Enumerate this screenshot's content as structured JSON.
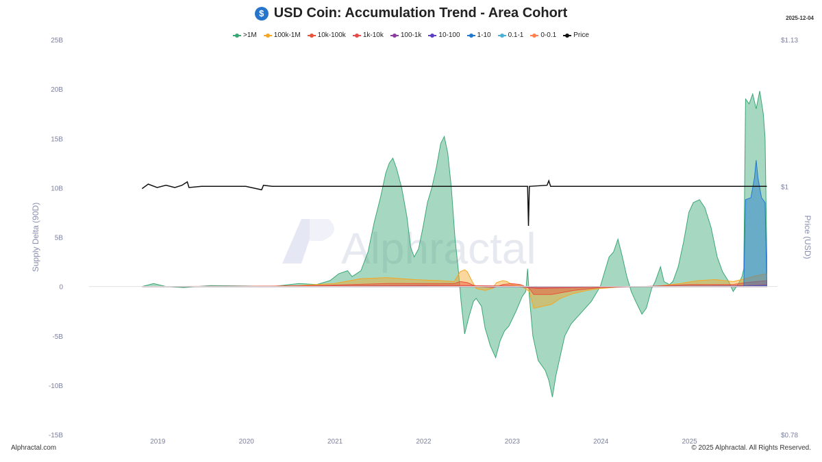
{
  "header": {
    "title": "USD Coin: Accumulation Trend - Area Cohort",
    "date": "2025-12-04",
    "coin_icon": "usdc-coin-icon",
    "coin_symbol": "$"
  },
  "footer": {
    "left": "Alphractal.com",
    "right": "© 2025 Alphractal. All Rights Reserved."
  },
  "watermark": "Alphractal",
  "chart_data": {
    "type": "area",
    "xlabel": "",
    "ylabel": "Supply Delta (90D)",
    "y2label": "Price (USD)",
    "x_ticks": [
      "2019",
      "2020",
      "2021",
      "2022",
      "2023",
      "2024",
      "2025"
    ],
    "y_ticks": [
      "25B",
      "20B",
      "15B",
      "10B",
      "5B",
      "0",
      "-5B",
      "-10B",
      "-15B"
    ],
    "y2_ticks": [
      "$1.13",
      "$1",
      "$0.78"
    ],
    "ylim": [
      -15,
      25
    ],
    "y2lim": [
      0.78,
      1.13
    ],
    "xlim": [
      2018.0,
      2026.0
    ],
    "grid": false,
    "legend_position": "top-center",
    "series": [
      {
        "name": ">1M",
        "color": "#3aa675",
        "points": [
          [
            2018.83,
            0
          ],
          [
            2018.96,
            0.3
          ],
          [
            2019.1,
            0
          ],
          [
            2019.3,
            -0.1
          ],
          [
            2019.6,
            0.1
          ],
          [
            2020.0,
            0.05
          ],
          [
            2020.3,
            0
          ],
          [
            2020.6,
            0.3
          ],
          [
            2020.8,
            0.2
          ],
          [
            2020.95,
            0.6
          ],
          [
            2021.05,
            1.3
          ],
          [
            2021.15,
            1.6
          ],
          [
            2021.2,
            1.0
          ],
          [
            2021.3,
            1.6
          ],
          [
            2021.38,
            3.5
          ],
          [
            2021.45,
            6.5
          ],
          [
            2021.52,
            9
          ],
          [
            2021.58,
            11.5
          ],
          [
            2021.62,
            12.5
          ],
          [
            2021.66,
            13
          ],
          [
            2021.7,
            12
          ],
          [
            2021.76,
            10
          ],
          [
            2021.82,
            7
          ],
          [
            2021.86,
            4
          ],
          [
            2021.9,
            3
          ],
          [
            2021.95,
            3.8
          ],
          [
            2022.0,
            6
          ],
          [
            2022.05,
            8.5
          ],
          [
            2022.1,
            10
          ],
          [
            2022.15,
            12
          ],
          [
            2022.2,
            14.5
          ],
          [
            2022.24,
            15.2
          ],
          [
            2022.28,
            13.5
          ],
          [
            2022.32,
            10
          ],
          [
            2022.36,
            5
          ],
          [
            2022.4,
            1.5
          ],
          [
            2022.43,
            -1.5
          ],
          [
            2022.47,
            -4.8
          ],
          [
            2022.52,
            -3
          ],
          [
            2022.57,
            -1.5
          ],
          [
            2022.6,
            -1.2
          ],
          [
            2022.66,
            -2
          ],
          [
            2022.7,
            -4.2
          ],
          [
            2022.76,
            -6
          ],
          [
            2022.82,
            -7.2
          ],
          [
            2022.87,
            -5.5
          ],
          [
            2022.92,
            -4.5
          ],
          [
            2022.97,
            -4
          ],
          [
            2023.05,
            -2.5
          ],
          [
            2023.12,
            -1
          ],
          [
            2023.16,
            -0.5
          ],
          [
            2023.18,
            1.8
          ],
          [
            2023.2,
            -1
          ],
          [
            2023.24,
            -5
          ],
          [
            2023.3,
            -7.5
          ],
          [
            2023.38,
            -8.5
          ],
          [
            2023.42,
            -9.5
          ],
          [
            2023.46,
            -11.2
          ],
          [
            2023.5,
            -9
          ],
          [
            2023.55,
            -7
          ],
          [
            2023.6,
            -5
          ],
          [
            2023.67,
            -3.8
          ],
          [
            2023.73,
            -3.2
          ],
          [
            2023.8,
            -2.5
          ],
          [
            2023.9,
            -1.5
          ],
          [
            2024.0,
            0
          ],
          [
            2024.05,
            1.5
          ],
          [
            2024.1,
            3
          ],
          [
            2024.15,
            3.5
          ],
          [
            2024.2,
            4.8
          ],
          [
            2024.25,
            3
          ],
          [
            2024.3,
            1
          ],
          [
            2024.35,
            -0.5
          ],
          [
            2024.4,
            -1.5
          ],
          [
            2024.47,
            -2.8
          ],
          [
            2024.52,
            -2.2
          ],
          [
            2024.58,
            -0.2
          ],
          [
            2024.62,
            0.5
          ],
          [
            2024.68,
            2
          ],
          [
            2024.72,
            0.5
          ],
          [
            2024.78,
            0.2
          ],
          [
            2024.82,
            0.5
          ],
          [
            2024.88,
            2
          ],
          [
            2024.94,
            4.5
          ],
          [
            2025.0,
            7.5
          ],
          [
            2025.05,
            8.5
          ],
          [
            2025.12,
            8.8
          ],
          [
            2025.18,
            8
          ],
          [
            2025.25,
            6
          ],
          [
            2025.32,
            3
          ],
          [
            2025.38,
            1.5
          ],
          [
            2025.45,
            0.5
          ],
          [
            2025.5,
            -0.5
          ],
          [
            2025.56,
            0.3
          ],
          [
            2025.6,
            1
          ],
          [
            2025.62,
            1.8
          ],
          [
            2025.64,
            19
          ],
          [
            2025.68,
            18.5
          ],
          [
            2025.72,
            19.5
          ],
          [
            2025.76,
            18
          ],
          [
            2025.8,
            19.8
          ],
          [
            2025.84,
            17.5
          ],
          [
            2025.86,
            15
          ],
          [
            2025.88,
            3
          ]
        ]
      },
      {
        "name": "100k-1M",
        "color": "#f5a623",
        "points": [
          [
            2018.83,
            0
          ],
          [
            2019.5,
            0
          ],
          [
            2020.0,
            0
          ],
          [
            2020.6,
            0.1
          ],
          [
            2021.0,
            0.3
          ],
          [
            2021.3,
            0.8
          ],
          [
            2021.6,
            0.9
          ],
          [
            2021.9,
            0.7
          ],
          [
            2022.2,
            0.6
          ],
          [
            2022.35,
            0.5
          ],
          [
            2022.42,
            1.5
          ],
          [
            2022.47,
            1.7
          ],
          [
            2022.5,
            1.5
          ],
          [
            2022.55,
            0.6
          ],
          [
            2022.6,
            -0.2
          ],
          [
            2022.7,
            -0.4
          ],
          [
            2022.78,
            -0.2
          ],
          [
            2022.83,
            0.4
          ],
          [
            2022.9,
            0.6
          ],
          [
            2022.95,
            0.5
          ],
          [
            2023.0,
            0.2
          ],
          [
            2023.1,
            0.1
          ],
          [
            2023.2,
            -0.5
          ],
          [
            2023.25,
            -2.2
          ],
          [
            2023.35,
            -2.0
          ],
          [
            2023.45,
            -1.8
          ],
          [
            2023.55,
            -1.2
          ],
          [
            2023.7,
            -0.7
          ],
          [
            2023.85,
            -0.4
          ],
          [
            2024.0,
            -0.2
          ],
          [
            2024.3,
            0
          ],
          [
            2024.6,
            0
          ],
          [
            2024.9,
            0.3
          ],
          [
            2025.1,
            0.6
          ],
          [
            2025.3,
            0.7
          ],
          [
            2025.5,
            0.5
          ],
          [
            2025.64,
            0.8
          ],
          [
            2025.76,
            1.1
          ],
          [
            2025.88,
            1.3
          ]
        ]
      },
      {
        "name": "10k-100k",
        "color": "#e8523a",
        "points": [
          [
            2018.83,
            0
          ],
          [
            2020.0,
            0
          ],
          [
            2020.8,
            0.1
          ],
          [
            2021.2,
            0.2
          ],
          [
            2021.6,
            0.3
          ],
          [
            2022.0,
            0.3
          ],
          [
            2022.35,
            0.3
          ],
          [
            2022.42,
            0.5
          ],
          [
            2022.5,
            0.4
          ],
          [
            2022.6,
            0
          ],
          [
            2022.8,
            -0.1
          ],
          [
            2022.9,
            0.2
          ],
          [
            2023.0,
            0.3
          ],
          [
            2023.1,
            0.2
          ],
          [
            2023.2,
            -0.2
          ],
          [
            2023.25,
            -0.8
          ],
          [
            2023.45,
            -0.8
          ],
          [
            2023.7,
            -0.4
          ],
          [
            2024.0,
            -0.1
          ],
          [
            2024.5,
            0
          ],
          [
            2025.0,
            0.2
          ],
          [
            2025.5,
            0.2
          ],
          [
            2025.64,
            0.4
          ],
          [
            2025.88,
            0.6
          ]
        ]
      },
      {
        "name": "1k-10k",
        "color": "#e64a4a",
        "points": [
          [
            2018.83,
            0
          ],
          [
            2021.0,
            0.05
          ],
          [
            2022.0,
            0.1
          ],
          [
            2022.5,
            0.1
          ],
          [
            2023.0,
            0.05
          ],
          [
            2023.3,
            -0.2
          ],
          [
            2023.7,
            -0.1
          ],
          [
            2024.5,
            0
          ],
          [
            2025.5,
            0.05
          ],
          [
            2025.64,
            0.1
          ],
          [
            2025.88,
            0.2
          ]
        ]
      },
      {
        "name": "100-1k",
        "color": "#8a3fa0",
        "points": [
          [
            2018.83,
            0
          ],
          [
            2022.0,
            0.02
          ],
          [
            2023.3,
            -0.05
          ],
          [
            2025.64,
            0.05
          ],
          [
            2025.88,
            0.1
          ]
        ]
      },
      {
        "name": "10-100",
        "color": "#5b3fc4",
        "points": [
          [
            2018.83,
            0
          ],
          [
            2022.0,
            0.01
          ],
          [
            2023.3,
            -0.02
          ],
          [
            2025.88,
            0.05
          ]
        ]
      },
      {
        "name": "1-10",
        "color": "#1f77d0",
        "points": [
          [
            2018.83,
            0
          ],
          [
            2025.62,
            0
          ],
          [
            2025.64,
            8.8
          ],
          [
            2025.7,
            9
          ],
          [
            2025.74,
            11
          ],
          [
            2025.76,
            12.8
          ],
          [
            2025.78,
            11
          ],
          [
            2025.82,
            9
          ],
          [
            2025.86,
            8.5
          ],
          [
            2025.88,
            0
          ]
        ]
      },
      {
        "name": "0.1-1",
        "color": "#4ab0d8",
        "points": [
          [
            2018.83,
            0
          ],
          [
            2025.88,
            0
          ]
        ]
      },
      {
        "name": "0-0.1",
        "color": "#ff7f50",
        "points": [
          [
            2018.83,
            0
          ],
          [
            2025.88,
            0
          ]
        ]
      }
    ],
    "price": {
      "name": "Price",
      "color": "#111111",
      "axis": "right",
      "points": [
        [
          2018.83,
          0.998
        ],
        [
          2018.9,
          1.002
        ],
        [
          2019.0,
          0.999
        ],
        [
          2019.1,
          1.001
        ],
        [
          2019.2,
          0.999
        ],
        [
          2019.28,
          1.001
        ],
        [
          2019.34,
          1.004
        ],
        [
          2019.36,
          0.999
        ],
        [
          2019.5,
          1.0
        ],
        [
          2020.0,
          1.0
        ],
        [
          2020.18,
          0.997
        ],
        [
          2020.2,
          1.001
        ],
        [
          2020.3,
          1.0
        ],
        [
          2021.0,
          1.0
        ],
        [
          2021.5,
          1.0
        ],
        [
          2022.0,
          1.0
        ],
        [
          2022.5,
          1.0
        ],
        [
          2023.0,
          1.0
        ],
        [
          2023.18,
          1.0
        ],
        [
          2023.19,
          0.965
        ],
        [
          2023.2,
          1.0
        ],
        [
          2023.4,
          1.001
        ],
        [
          2023.42,
          1.005
        ],
        [
          2023.44,
          1.0
        ],
        [
          2024.0,
          1.0
        ],
        [
          2025.0,
          1.0
        ],
        [
          2025.88,
          1.0
        ]
      ]
    }
  }
}
